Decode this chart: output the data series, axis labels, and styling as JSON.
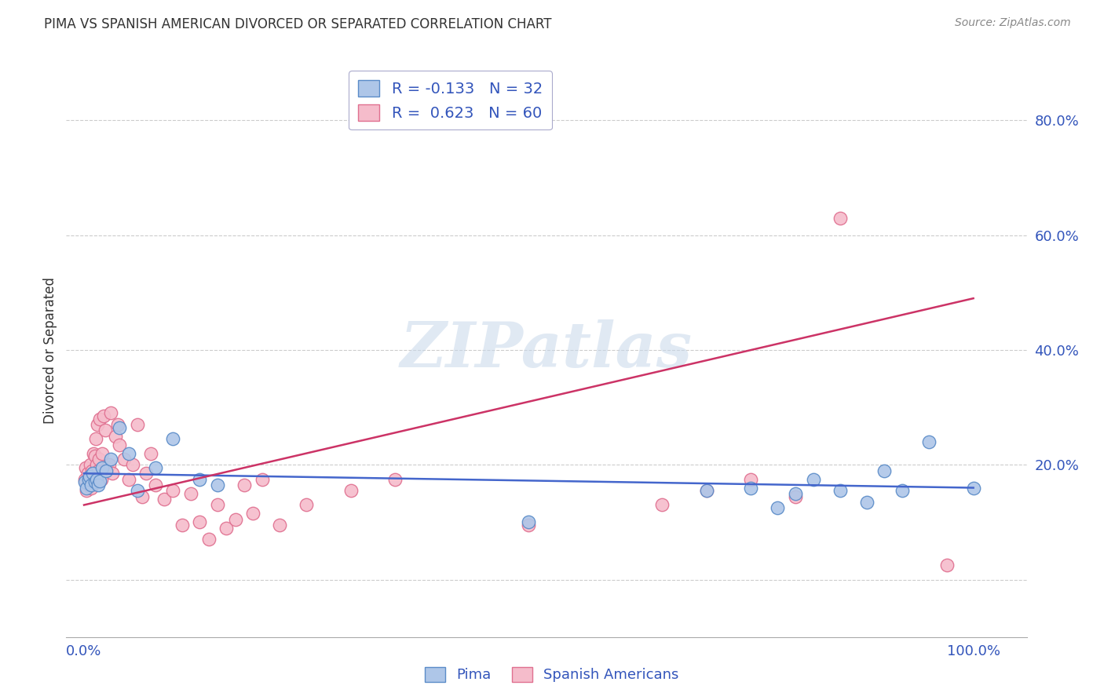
{
  "title": "PIMA VS SPANISH AMERICAN DIVORCED OR SEPARATED CORRELATION CHART",
  "source": "Source: ZipAtlas.com",
  "ylabel": "Divorced or Separated",
  "xlabel": "",
  "background_color": "#ffffff",
  "pima_color": "#aec6e8",
  "pima_edge_color": "#5b8cc8",
  "spanish_color": "#f5bccb",
  "spanish_edge_color": "#e07090",
  "pima_line_color": "#4466cc",
  "spanish_line_color": "#cc3366",
  "legend_text_color": "#3355bb",
  "grid_color": "#cccccc",
  "watermark": "ZIPatlas",
  "pima_R": -0.133,
  "pima_N": 32,
  "spanish_R": 0.623,
  "spanish_N": 60,
  "xlim": [
    -0.02,
    1.06
  ],
  "ylim": [
    -0.1,
    0.9
  ],
  "pima_x": [
    0.001,
    0.003,
    0.005,
    0.006,
    0.008,
    0.01,
    0.012,
    0.014,
    0.016,
    0.018,
    0.02,
    0.025,
    0.03,
    0.04,
    0.05,
    0.06,
    0.08,
    0.1,
    0.13,
    0.15,
    0.5,
    0.7,
    0.75,
    0.78,
    0.8,
    0.82,
    0.85,
    0.88,
    0.9,
    0.92,
    0.95,
    1.0
  ],
  "pima_y": [
    0.17,
    0.16,
    0.175,
    0.18,
    0.165,
    0.185,
    0.17,
    0.175,
    0.165,
    0.172,
    0.195,
    0.19,
    0.21,
    0.265,
    0.22,
    0.155,
    0.195,
    0.245,
    0.175,
    0.165,
    0.1,
    0.155,
    0.16,
    0.125,
    0.15,
    0.175,
    0.155,
    0.135,
    0.19,
    0.155,
    0.24,
    0.16
  ],
  "spanish_x": [
    0.001,
    0.002,
    0.003,
    0.004,
    0.005,
    0.006,
    0.007,
    0.008,
    0.009,
    0.01,
    0.011,
    0.012,
    0.013,
    0.014,
    0.015,
    0.016,
    0.017,
    0.018,
    0.019,
    0.02,
    0.022,
    0.024,
    0.026,
    0.028,
    0.03,
    0.032,
    0.035,
    0.038,
    0.04,
    0.045,
    0.05,
    0.055,
    0.06,
    0.065,
    0.07,
    0.075,
    0.08,
    0.09,
    0.1,
    0.11,
    0.12,
    0.13,
    0.14,
    0.15,
    0.16,
    0.17,
    0.18,
    0.19,
    0.2,
    0.22,
    0.25,
    0.3,
    0.35,
    0.5,
    0.65,
    0.7,
    0.75,
    0.8,
    0.85,
    0.97
  ],
  "spanish_y": [
    0.175,
    0.195,
    0.155,
    0.185,
    0.175,
    0.165,
    0.2,
    0.16,
    0.19,
    0.185,
    0.22,
    0.215,
    0.245,
    0.2,
    0.27,
    0.19,
    0.21,
    0.28,
    0.175,
    0.22,
    0.285,
    0.26,
    0.195,
    0.2,
    0.29,
    0.185,
    0.25,
    0.27,
    0.235,
    0.21,
    0.175,
    0.2,
    0.27,
    0.145,
    0.185,
    0.22,
    0.165,
    0.14,
    0.155,
    0.095,
    0.15,
    0.1,
    0.07,
    0.13,
    0.09,
    0.105,
    0.165,
    0.115,
    0.175,
    0.095,
    0.13,
    0.155,
    0.175,
    0.095,
    0.13,
    0.155,
    0.175,
    0.145,
    0.63,
    0.025
  ],
  "pima_line_x": [
    0.0,
    1.0
  ],
  "pima_line_y": [
    0.185,
    0.16
  ],
  "spanish_line_x": [
    0.0,
    1.0
  ],
  "spanish_line_y": [
    0.13,
    0.49
  ]
}
